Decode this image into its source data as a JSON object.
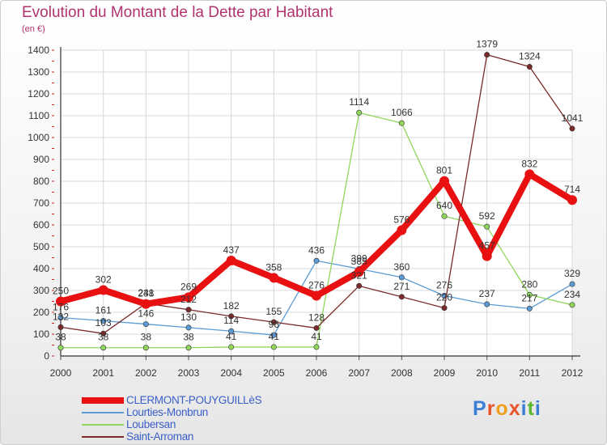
{
  "header": {
    "title": "Evolution du Montant de la Dette par Habitant",
    "subtitle": "(en €)"
  },
  "logo": {
    "text": "Proxiti",
    "letters": [
      "P",
      "r",
      "o",
      "x",
      "i",
      "t",
      "i"
    ],
    "colors": [
      "#3a7fd5",
      "#e8542a",
      "#f0a020",
      "#e8542a",
      "#3a7fd5",
      "#5cb82e",
      "#3a7fd5"
    ]
  },
  "chart_data": {
    "type": "line",
    "x": [
      "2000",
      "2001",
      "2002",
      "2003",
      "2004",
      "2005",
      "2006",
      "2007",
      "2008",
      "2009",
      "2010",
      "2011",
      "2012"
    ],
    "ylim": [
      0,
      1400
    ],
    "yticks": [
      0,
      100,
      200,
      300,
      400,
      500,
      600,
      700,
      800,
      900,
      1000,
      1100,
      1200,
      1300,
      1400
    ],
    "grid": true,
    "legend_position": "bottom-left",
    "series": [
      {
        "name": "CLERMONT-POUYGUILLèS",
        "color": "#e81010",
        "width": 8,
        "values": [
          250,
          302,
          238,
          269,
          437,
          358,
          276,
          385,
          576,
          801,
          457,
          832,
          714
        ],
        "labels": [
          "250",
          "302",
          "238",
          "269",
          "437",
          "358",
          "276",
          "385",
          "576",
          "801",
          "457",
          "832",
          "714"
        ]
      },
      {
        "name": "Lourties-Monbrun",
        "color": "#5a9bd5",
        "width": 1.3,
        "values": [
          176,
          161,
          146,
          130,
          114,
          96,
          436,
          399,
          360,
          276,
          237,
          217,
          329
        ],
        "labels": [
          "176",
          "161",
          "146",
          "130",
          "114",
          "96",
          "436",
          "399",
          "360",
          "276",
          "237",
          "217",
          "329"
        ]
      },
      {
        "name": "Loubersan",
        "color": "#8fd65a",
        "width": 1.3,
        "values": [
          38,
          38,
          38,
          38,
          41,
          41,
          41,
          1114,
          1066,
          640,
          592,
          280,
          234
        ],
        "labels": [
          "38",
          "38",
          "38",
          "38",
          "41",
          "41",
          "41",
          "1114",
          "1066",
          "640",
          "592",
          "280",
          "234"
        ]
      },
      {
        "name": "Saint-Arroman",
        "color": "#7a2a2a",
        "width": 1.3,
        "values": [
          132,
          103,
          241,
          212,
          182,
          155,
          128,
          321,
          271,
          220,
          1379,
          1324,
          1041
        ],
        "labels": [
          "132",
          "103",
          "241",
          "212",
          "182",
          "155",
          "128",
          "321",
          "271",
          "220",
          "1379",
          "1324",
          "1041"
        ]
      }
    ]
  }
}
